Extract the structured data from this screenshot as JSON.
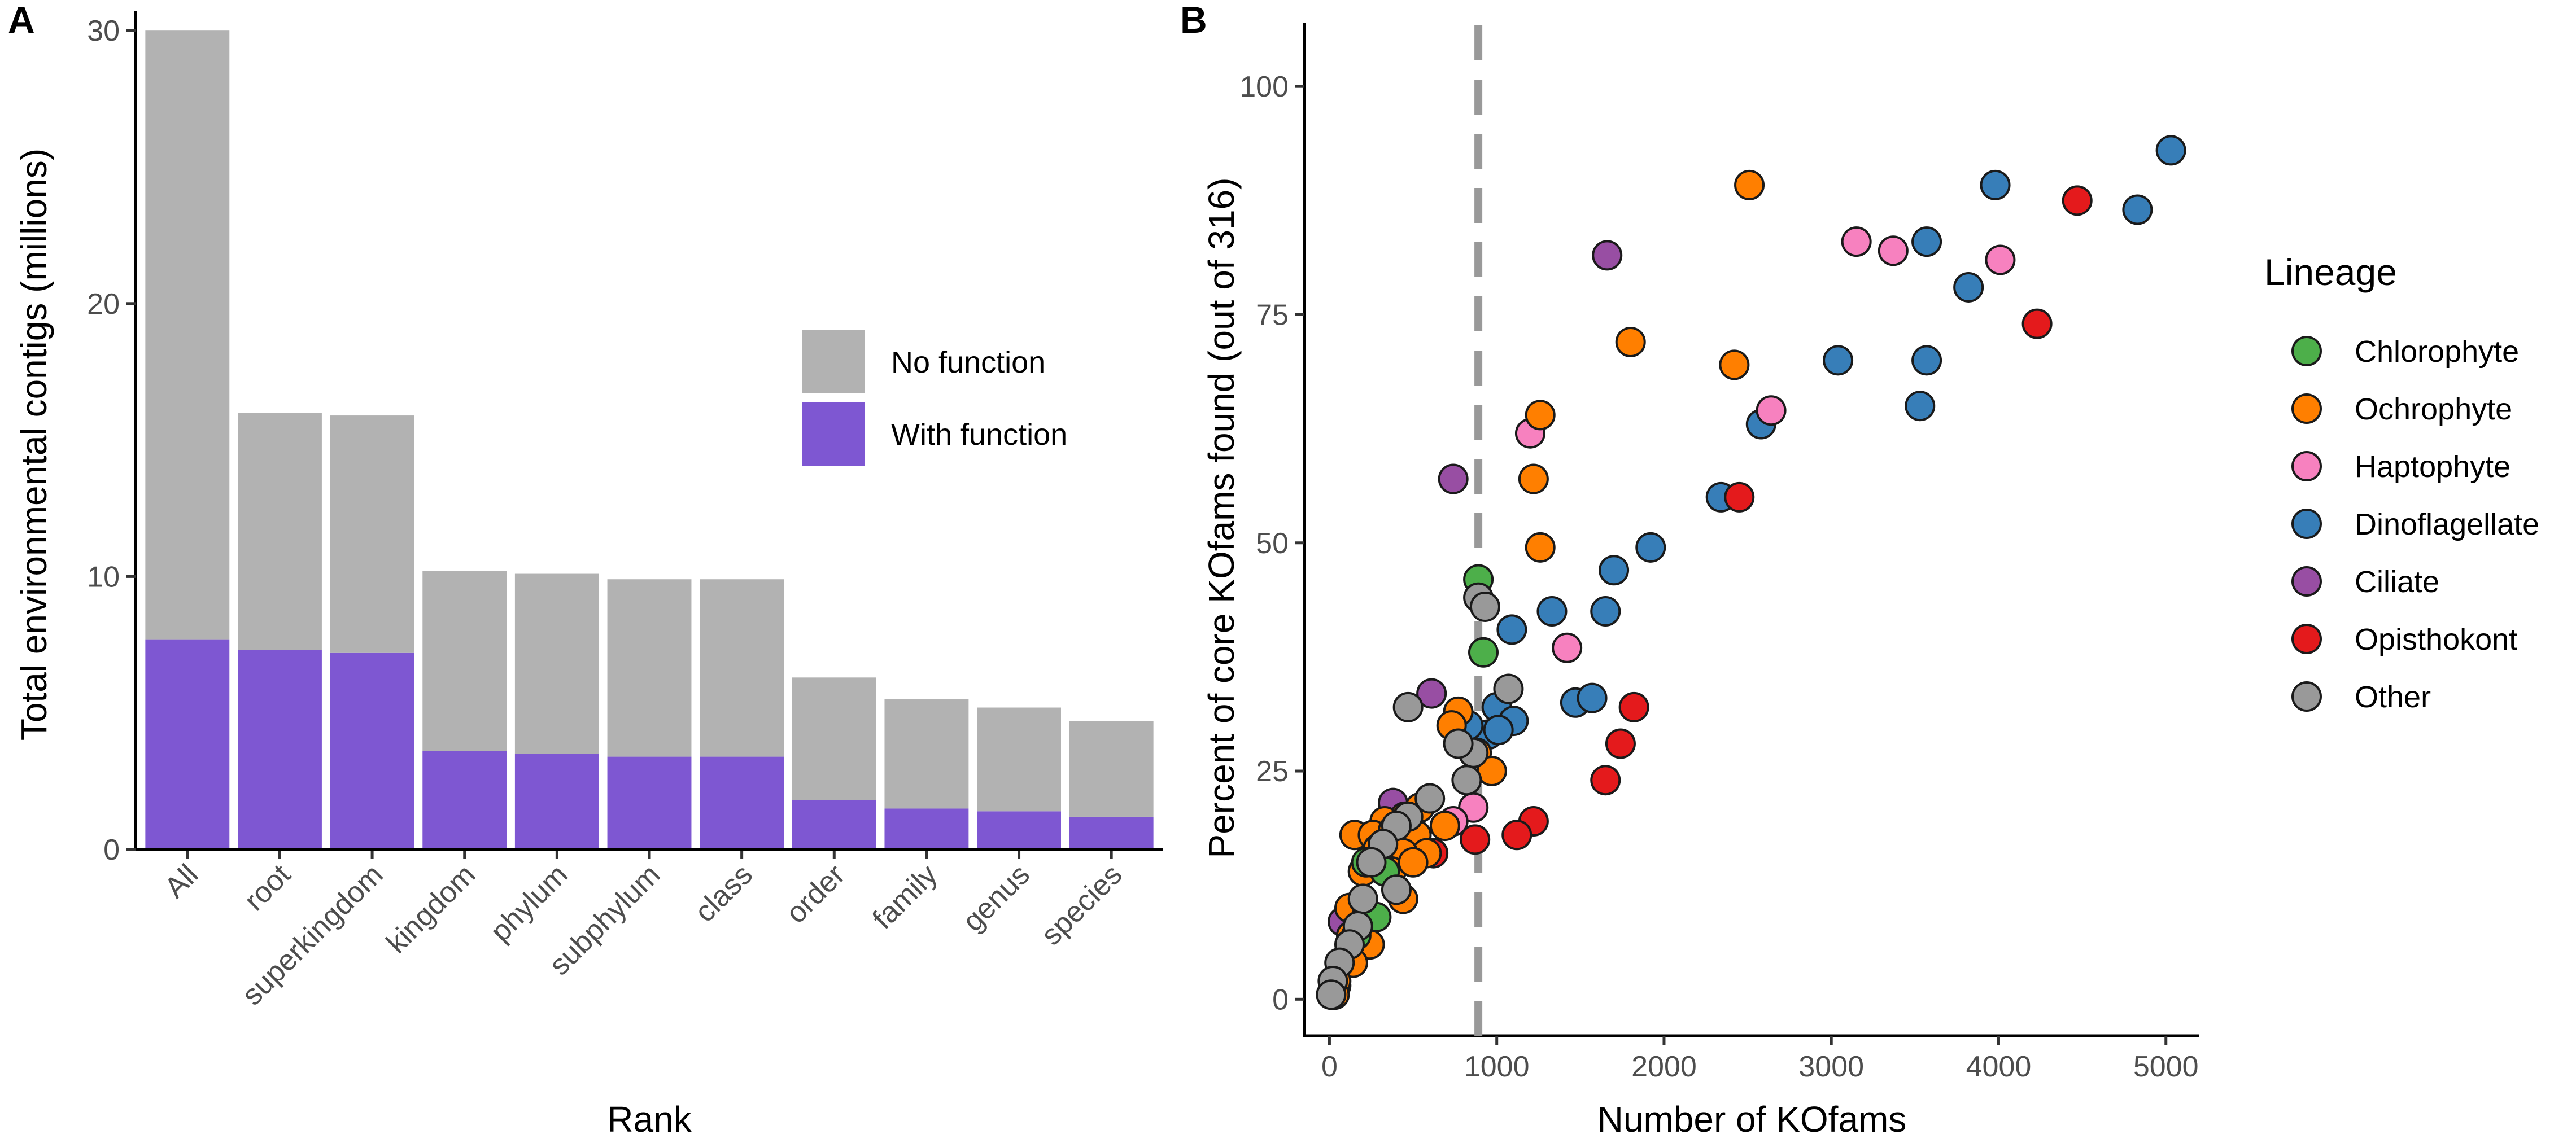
{
  "chart_data": [
    {
      "panel": "A",
      "type": "bar",
      "stacked": true,
      "xlabel": "Rank",
      "ylabel": "Total environmental contigs (millions)",
      "ylim": [
        0,
        30.5
      ],
      "yticks": [
        0,
        10,
        20,
        30
      ],
      "categories": [
        "All",
        "root",
        "superkingdom",
        "kingdom",
        "phylum",
        "subphylum",
        "class",
        "order",
        "family",
        "genus",
        "species"
      ],
      "series": [
        {
          "name": "With function",
          "color": "#7e57d2",
          "values": [
            7.7,
            7.3,
            7.2,
            3.6,
            3.5,
            3.4,
            3.4,
            1.8,
            1.5,
            1.4,
            1.2
          ]
        },
        {
          "name": "No function",
          "color": "#b2b2b2",
          "values": [
            22.3,
            8.7,
            8.7,
            6.6,
            6.6,
            6.5,
            6.5,
            4.5,
            4.0,
            3.8,
            3.5
          ]
        }
      ],
      "legend": {
        "position": "inside-top-right",
        "items": [
          {
            "label": "No function",
            "color": "#b2b2b2"
          },
          {
            "label": "With function",
            "color": "#7e57d2"
          }
        ]
      }
    },
    {
      "panel": "B",
      "type": "scatter",
      "xlabel": "Number of KOfams",
      "ylabel": "Percent of core KOfams found (out of 316)",
      "xlim": [
        -150,
        5200
      ],
      "ylim": [
        -4,
        107
      ],
      "xticks": [
        0,
        1000,
        2000,
        3000,
        4000,
        5000
      ],
      "yticks": [
        0,
        25,
        50,
        75,
        100
      ],
      "vline": {
        "x": 890,
        "style": "dashed",
        "color": "#999999"
      },
      "legend": {
        "title": "Lineage",
        "position": "right",
        "items": [
          {
            "label": "Chlorophyte",
            "color": "#4daf4a"
          },
          {
            "label": "Ochrophyte",
            "color": "#ff7f00"
          },
          {
            "label": "Haptophyte",
            "color": "#f781bf"
          },
          {
            "label": "Dinoflagellate",
            "color": "#377eb8"
          },
          {
            "label": "Ciliate",
            "color": "#984ea3"
          },
          {
            "label": "Opisthokont",
            "color": "#e41a1c"
          },
          {
            "label": "Other",
            "color": "#999999"
          }
        ]
      },
      "points": [
        {
          "lineage": "Dinoflagellate",
          "x": 5030,
          "y": 93
        },
        {
          "lineage": "Dinoflagellate",
          "x": 4830,
          "y": 86.5
        },
        {
          "lineage": "Dinoflagellate",
          "x": 3980,
          "y": 89.2
        },
        {
          "lineage": "Dinoflagellate",
          "x": 3570,
          "y": 83
        },
        {
          "lineage": "Dinoflagellate",
          "x": 3820,
          "y": 78
        },
        {
          "lineage": "Dinoflagellate",
          "x": 3040,
          "y": 70
        },
        {
          "lineage": "Dinoflagellate",
          "x": 3570,
          "y": 70
        },
        {
          "lineage": "Dinoflagellate",
          "x": 3530,
          "y": 65
        },
        {
          "lineage": "Dinoflagellate",
          "x": 2580,
          "y": 63
        },
        {
          "lineage": "Dinoflagellate",
          "x": 2340,
          "y": 55
        },
        {
          "lineage": "Dinoflagellate",
          "x": 1920,
          "y": 49.5
        },
        {
          "lineage": "Dinoflagellate",
          "x": 1700,
          "y": 47
        },
        {
          "lineage": "Dinoflagellate",
          "x": 1650,
          "y": 42.5
        },
        {
          "lineage": "Dinoflagellate",
          "x": 1330,
          "y": 42.5
        },
        {
          "lineage": "Dinoflagellate",
          "x": 1090,
          "y": 40.5
        },
        {
          "lineage": "Dinoflagellate",
          "x": 1470,
          "y": 32.5
        },
        {
          "lineage": "Dinoflagellate",
          "x": 1570,
          "y": 33
        },
        {
          "lineage": "Dinoflagellate",
          "x": 1000,
          "y": 32
        },
        {
          "lineage": "Dinoflagellate",
          "x": 1100,
          "y": 30.5
        },
        {
          "lineage": "Dinoflagellate",
          "x": 950,
          "y": 29
        },
        {
          "lineage": "Dinoflagellate",
          "x": 830,
          "y": 30
        },
        {
          "lineage": "Dinoflagellate",
          "x": 1010,
          "y": 29.5
        },
        {
          "lineage": "Opisthokont",
          "x": 4470,
          "y": 87.5
        },
        {
          "lineage": "Opisthokont",
          "x": 4230,
          "y": 74
        },
        {
          "lineage": "Opisthokont",
          "x": 2450,
          "y": 55
        },
        {
          "lineage": "Opisthokont",
          "x": 1820,
          "y": 32
        },
        {
          "lineage": "Opisthokont",
          "x": 1740,
          "y": 28
        },
        {
          "lineage": "Opisthokont",
          "x": 1650,
          "y": 24
        },
        {
          "lineage": "Opisthokont",
          "x": 1220,
          "y": 19.5
        },
        {
          "lineage": "Opisthokont",
          "x": 1120,
          "y": 18
        },
        {
          "lineage": "Opisthokont",
          "x": 870,
          "y": 17.5
        },
        {
          "lineage": "Opisthokont",
          "x": 620,
          "y": 16
        },
        {
          "lineage": "Opisthokont",
          "x": 410,
          "y": 15
        },
        {
          "lineage": "Opisthokont",
          "x": 250,
          "y": 9
        },
        {
          "lineage": "Opisthokont",
          "x": 120,
          "y": 5
        },
        {
          "lineage": "Opisthokont",
          "x": 40,
          "y": 1.5
        },
        {
          "lineage": "Haptophyte",
          "x": 3150,
          "y": 83
        },
        {
          "lineage": "Haptophyte",
          "x": 3370,
          "y": 82
        },
        {
          "lineage": "Haptophyte",
          "x": 4010,
          "y": 81
        },
        {
          "lineage": "Haptophyte",
          "x": 2640,
          "y": 64.5
        },
        {
          "lineage": "Haptophyte",
          "x": 1200,
          "y": 62
        },
        {
          "lineage": "Haptophyte",
          "x": 1420,
          "y": 38.5
        },
        {
          "lineage": "Haptophyte",
          "x": 860,
          "y": 21
        },
        {
          "lineage": "Haptophyte",
          "x": 740,
          "y": 19.5
        },
        {
          "lineage": "Ciliate",
          "x": 1660,
          "y": 81.5
        },
        {
          "lineage": "Ciliate",
          "x": 740,
          "y": 57
        },
        {
          "lineage": "Ciliate",
          "x": 610,
          "y": 33.5
        },
        {
          "lineage": "Ciliate",
          "x": 380,
          "y": 21.5
        },
        {
          "lineage": "Ciliate",
          "x": 80,
          "y": 8.5
        },
        {
          "lineage": "Ochrophyte",
          "x": 2510,
          "y": 89.2
        },
        {
          "lineage": "Ochrophyte",
          "x": 1800,
          "y": 72
        },
        {
          "lineage": "Ochrophyte",
          "x": 2420,
          "y": 69.5
        },
        {
          "lineage": "Ochrophyte",
          "x": 1260,
          "y": 64
        },
        {
          "lineage": "Ochrophyte",
          "x": 1220,
          "y": 57
        },
        {
          "lineage": "Ochrophyte",
          "x": 1260,
          "y": 49.5
        },
        {
          "lineage": "Ochrophyte",
          "x": 770,
          "y": 31.5
        },
        {
          "lineage": "Ochrophyte",
          "x": 730,
          "y": 30
        },
        {
          "lineage": "Ochrophyte",
          "x": 880,
          "y": 27
        },
        {
          "lineage": "Ochrophyte",
          "x": 970,
          "y": 25
        },
        {
          "lineage": "Ochrophyte",
          "x": 540,
          "y": 21
        },
        {
          "lineage": "Ochrophyte",
          "x": 450,
          "y": 20
        },
        {
          "lineage": "Ochrophyte",
          "x": 330,
          "y": 19.5
        },
        {
          "lineage": "Ochrophyte",
          "x": 150,
          "y": 18
        },
        {
          "lineage": "Ochrophyte",
          "x": 260,
          "y": 18
        },
        {
          "lineage": "Ochrophyte",
          "x": 380,
          "y": 18.5
        },
        {
          "lineage": "Ochrophyte",
          "x": 520,
          "y": 18
        },
        {
          "lineage": "Ochrophyte",
          "x": 690,
          "y": 19
        },
        {
          "lineage": "Ochrophyte",
          "x": 580,
          "y": 16
        },
        {
          "lineage": "Ochrophyte",
          "x": 440,
          "y": 16
        },
        {
          "lineage": "Ochrophyte",
          "x": 290,
          "y": 16.5
        },
        {
          "lineage": "Ochrophyte",
          "x": 200,
          "y": 14
        },
        {
          "lineage": "Ochrophyte",
          "x": 370,
          "y": 14
        },
        {
          "lineage": "Ochrophyte",
          "x": 500,
          "y": 15
        },
        {
          "lineage": "Ochrophyte",
          "x": 120,
          "y": 10
        },
        {
          "lineage": "Ochrophyte",
          "x": 220,
          "y": 9
        },
        {
          "lineage": "Ochrophyte",
          "x": 440,
          "y": 11
        },
        {
          "lineage": "Ochrophyte",
          "x": 130,
          "y": 7
        },
        {
          "lineage": "Ochrophyte",
          "x": 240,
          "y": 6
        },
        {
          "lineage": "Ochrophyte",
          "x": 80,
          "y": 4
        },
        {
          "lineage": "Ochrophyte",
          "x": 140,
          "y": 4
        },
        {
          "lineage": "Ochrophyte",
          "x": 40,
          "y": 2
        },
        {
          "lineage": "Ochrophyte",
          "x": 30,
          "y": 0.5
        },
        {
          "lineage": "Chlorophyte",
          "x": 890,
          "y": 46
        },
        {
          "lineage": "Chlorophyte",
          "x": 920,
          "y": 38
        },
        {
          "lineage": "Chlorophyte",
          "x": 220,
          "y": 15
        },
        {
          "lineage": "Chlorophyte",
          "x": 330,
          "y": 14
        },
        {
          "lineage": "Chlorophyte",
          "x": 280,
          "y": 9
        },
        {
          "lineage": "Chlorophyte",
          "x": 160,
          "y": 7
        },
        {
          "lineage": "Other",
          "x": 890,
          "y": 44
        },
        {
          "lineage": "Other",
          "x": 930,
          "y": 43
        },
        {
          "lineage": "Other",
          "x": 470,
          "y": 32
        },
        {
          "lineage": "Other",
          "x": 1070,
          "y": 34
        },
        {
          "lineage": "Other",
          "x": 860,
          "y": 27
        },
        {
          "lineage": "Other",
          "x": 770,
          "y": 28
        },
        {
          "lineage": "Other",
          "x": 820,
          "y": 24
        },
        {
          "lineage": "Other",
          "x": 600,
          "y": 22
        },
        {
          "lineage": "Other",
          "x": 470,
          "y": 20
        },
        {
          "lineage": "Other",
          "x": 400,
          "y": 19
        },
        {
          "lineage": "Other",
          "x": 320,
          "y": 17
        },
        {
          "lineage": "Other",
          "x": 250,
          "y": 15
        },
        {
          "lineage": "Other",
          "x": 400,
          "y": 12
        },
        {
          "lineage": "Other",
          "x": 200,
          "y": 11
        },
        {
          "lineage": "Other",
          "x": 170,
          "y": 8
        },
        {
          "lineage": "Other",
          "x": 120,
          "y": 6
        },
        {
          "lineage": "Other",
          "x": 60,
          "y": 4
        },
        {
          "lineage": "Other",
          "x": 20,
          "y": 2
        },
        {
          "lineage": "Other",
          "x": 10,
          "y": 0.5
        }
      ]
    }
  ]
}
